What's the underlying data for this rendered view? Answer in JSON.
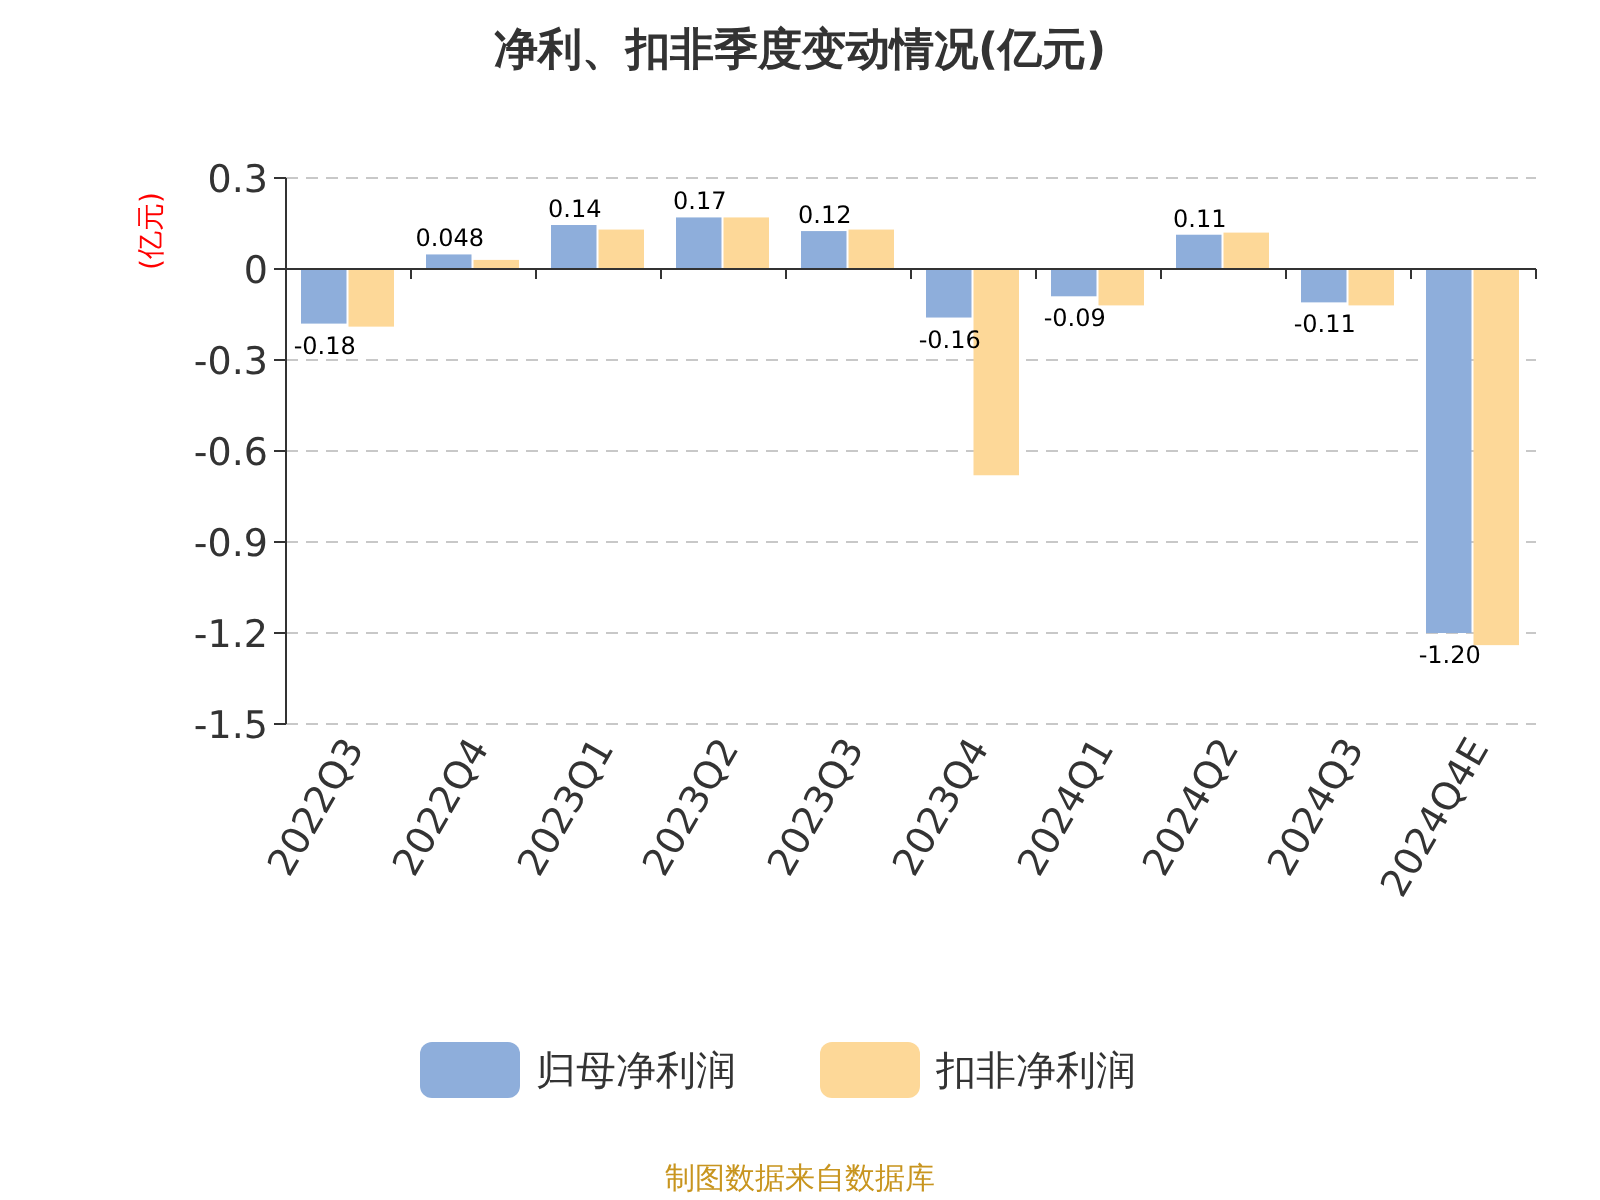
{
  "chart_data": {
    "type": "bar",
    "title": "净利、扣非季度变动情况(亿元)",
    "ylabel": "(亿元)",
    "categories": [
      "2022Q3",
      "2022Q4",
      "2023Q1",
      "2023Q2",
      "2023Q3",
      "2023Q4",
      "2024Q1",
      "2024Q2",
      "2024Q3",
      "2024Q4E"
    ],
    "series": [
      {
        "name": "归母净利润",
        "color": "#8eaedb",
        "values": [
          -0.18,
          0.048,
          0.145,
          0.17,
          0.125,
          -0.16,
          -0.09,
          0.113,
          -0.11,
          -1.2
        ],
        "value_labels": [
          "-0.18",
          "0.048",
          "0.14",
          "0.17",
          "0.12",
          "-0.16",
          "-0.09",
          "0.11",
          "-0.11",
          "-1.20"
        ]
      },
      {
        "name": "扣非净利润",
        "color": "#fdd898",
        "values": [
          -0.19,
          0.03,
          0.13,
          0.17,
          0.13,
          -0.68,
          -0.12,
          0.12,
          -0.12,
          -1.24
        ]
      }
    ],
    "ylim": [
      -1.5,
      0.3
    ],
    "yticks": [
      -1.5,
      -1.2,
      -0.9,
      -0.6,
      -0.3,
      0,
      0.3
    ],
    "grid": "y",
    "legend": "bottom",
    "annotations": [
      "制图数据来自数据库"
    ]
  }
}
